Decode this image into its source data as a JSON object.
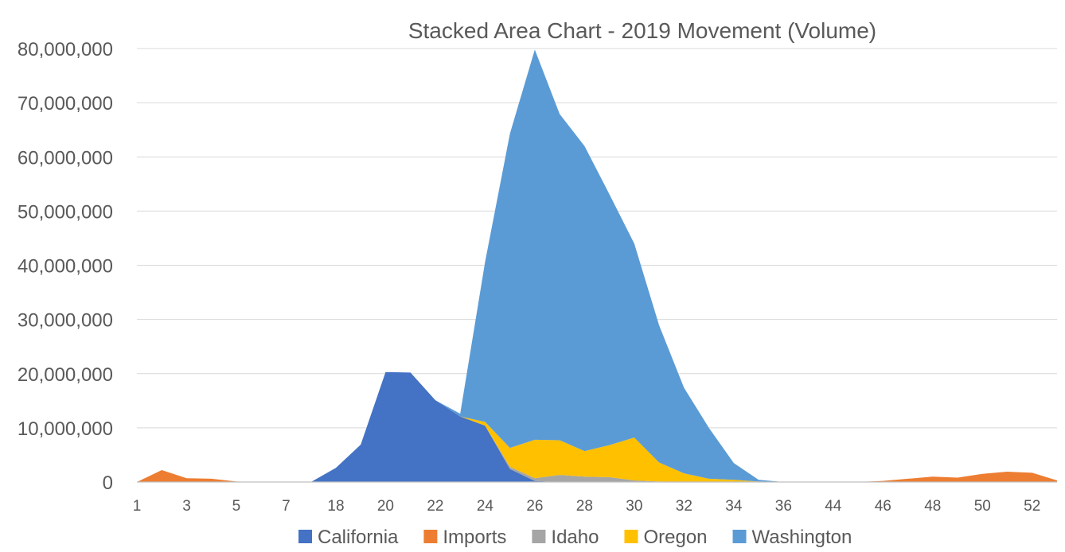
{
  "chart_data": {
    "type": "area",
    "stacked": true,
    "title": "Stacked Area Chart - 2019 Movement (Volume)",
    "xlabel": "",
    "ylabel": "",
    "ylim": [
      0,
      80000000
    ],
    "yticks": [
      0,
      10000000,
      20000000,
      30000000,
      40000000,
      50000000,
      60000000,
      70000000,
      80000000
    ],
    "ytick_labels": [
      "0",
      "10,000,000",
      "20,000,000",
      "30,000,000",
      "40,000,000",
      "50,000,000",
      "60,000,000",
      "70,000,000",
      "80,000,000"
    ],
    "grid": true,
    "legend_position": "bottom",
    "categories": [
      "1",
      "2",
      "3",
      "4",
      "5",
      "6",
      "7",
      "8",
      "18",
      "19",
      "20",
      "21",
      "22",
      "23",
      "24",
      "25",
      "26",
      "27",
      "28",
      "29",
      "30",
      "31",
      "32",
      "33",
      "34",
      "35",
      "36",
      "37",
      "44",
      "45",
      "46",
      "47",
      "48",
      "49",
      "50",
      "51",
      "52",
      "53"
    ],
    "visible_tick_labels": [
      "1",
      "3",
      "5",
      "7",
      "18",
      "20",
      "22",
      "24",
      "26",
      "28",
      "30",
      "32",
      "34",
      "36",
      "44",
      "46",
      "48",
      "50",
      "52"
    ],
    "series": [
      {
        "name": "California",
        "color": "#4472C4",
        "values": [
          0,
          0,
          0,
          0,
          0,
          0,
          0,
          0,
          2600000,
          6900000,
          20300000,
          20200000,
          15100000,
          12100000,
          10400000,
          2400000,
          200000,
          0,
          0,
          0,
          0,
          0,
          0,
          0,
          0,
          0,
          0,
          0,
          0,
          0,
          0,
          0,
          0,
          0,
          0,
          0,
          0,
          0
        ]
      },
      {
        "name": "Imports",
        "color": "#ED7D31",
        "values": [
          0,
          2200000,
          700000,
          600000,
          100000,
          0,
          0,
          0,
          0,
          0,
          0,
          0,
          0,
          0,
          0,
          0,
          0,
          0,
          0,
          0,
          0,
          0,
          0,
          0,
          0,
          0,
          0,
          0,
          0,
          0,
          200000,
          600000,
          1000000,
          800000,
          1500000,
          1900000,
          1700000,
          300000
        ]
      },
      {
        "name": "Idaho",
        "color": "#A5A5A5",
        "values": [
          0,
          0,
          0,
          0,
          0,
          0,
          0,
          0,
          0,
          0,
          0,
          0,
          0,
          0,
          0,
          400000,
          500000,
          1300000,
          1000000,
          900000,
          300000,
          100000,
          0,
          0,
          0,
          0,
          0,
          0,
          0,
          0,
          0,
          0,
          0,
          0,
          0,
          0,
          0,
          0
        ]
      },
      {
        "name": "Oregon",
        "color": "#FFC000",
        "values": [
          0,
          0,
          0,
          0,
          0,
          0,
          0,
          0,
          0,
          0,
          0,
          0,
          0,
          0,
          700000,
          3500000,
          7100000,
          6400000,
          4700000,
          5900000,
          7900000,
          3500000,
          1600000,
          600000,
          400000,
          100000,
          0,
          0,
          0,
          0,
          0,
          0,
          0,
          0,
          0,
          0,
          0,
          0
        ]
      },
      {
        "name": "Washington",
        "color": "#5B9BD5",
        "values": [
          0,
          0,
          0,
          0,
          0,
          0,
          0,
          0,
          0,
          0,
          0,
          0,
          0,
          500000,
          29500000,
          58000000,
          72000000,
          60200000,
          56300000,
          46300000,
          35800000,
          25300000,
          15800000,
          9400000,
          3100000,
          300000,
          0,
          0,
          0,
          0,
          0,
          0,
          0,
          0,
          0,
          0,
          0,
          0
        ]
      }
    ]
  }
}
